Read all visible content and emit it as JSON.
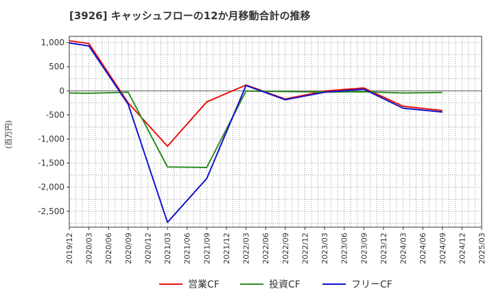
{
  "chart_data": {
    "type": "line",
    "title": "[3926]  キャッシュフローの12か月移動合計の推移",
    "xlabel": "",
    "ylabel": "(百万円)",
    "ylim": [
      -2830,
      1130
    ],
    "yticks": [
      1000,
      500,
      0,
      -500,
      -1000,
      -1500,
      -2000,
      -2500
    ],
    "ytick_labels": [
      "1,000",
      "500",
      "0",
      "-500",
      "-1,000",
      "-1,500",
      "-2,000",
      "-2,500"
    ],
    "x_tick_labels": [
      "2019/12",
      "2020/03",
      "2020/06",
      "2020/09",
      "2020/12",
      "2021/03",
      "2021/06",
      "2021/09",
      "2021/12",
      "2022/03",
      "2022/06",
      "2022/09",
      "2022/12",
      "2023/03",
      "2023/06",
      "2023/09",
      "2023/12",
      "2024/03",
      "2024/06",
      "2024/09",
      "2024/12",
      "2025/03"
    ],
    "grid": true,
    "legend_position": "bottom",
    "series": [
      {
        "name": "営業CF",
        "color": "#e8120c",
        "points": [
          [
            0,
            1040
          ],
          [
            1,
            980
          ],
          [
            3,
            -250
          ],
          [
            5,
            -1150
          ],
          [
            7,
            -230
          ],
          [
            9,
            120
          ],
          [
            11,
            -170
          ],
          [
            13,
            -5
          ],
          [
            15,
            60
          ],
          [
            17,
            -320
          ],
          [
            19,
            -410
          ]
        ]
      },
      {
        "name": "投資CF",
        "color": "#2e8b22",
        "points": [
          [
            0,
            -45
          ],
          [
            1,
            -50
          ],
          [
            3,
            -30
          ],
          [
            5,
            -1580
          ],
          [
            7,
            -1590
          ],
          [
            9,
            -5
          ],
          [
            11,
            -15
          ],
          [
            13,
            -25
          ],
          [
            15,
            -20
          ],
          [
            17,
            -45
          ],
          [
            19,
            -35
          ]
        ]
      },
      {
        "name": "フリーCF",
        "color": "#1010cc",
        "points": [
          [
            0,
            995
          ],
          [
            1,
            930
          ],
          [
            3,
            -280
          ],
          [
            5,
            -2730
          ],
          [
            7,
            -1820
          ],
          [
            9,
            110
          ],
          [
            11,
            -185
          ],
          [
            13,
            -30
          ],
          [
            15,
            35
          ],
          [
            17,
            -360
          ],
          [
            19,
            -440
          ]
        ]
      }
    ]
  }
}
